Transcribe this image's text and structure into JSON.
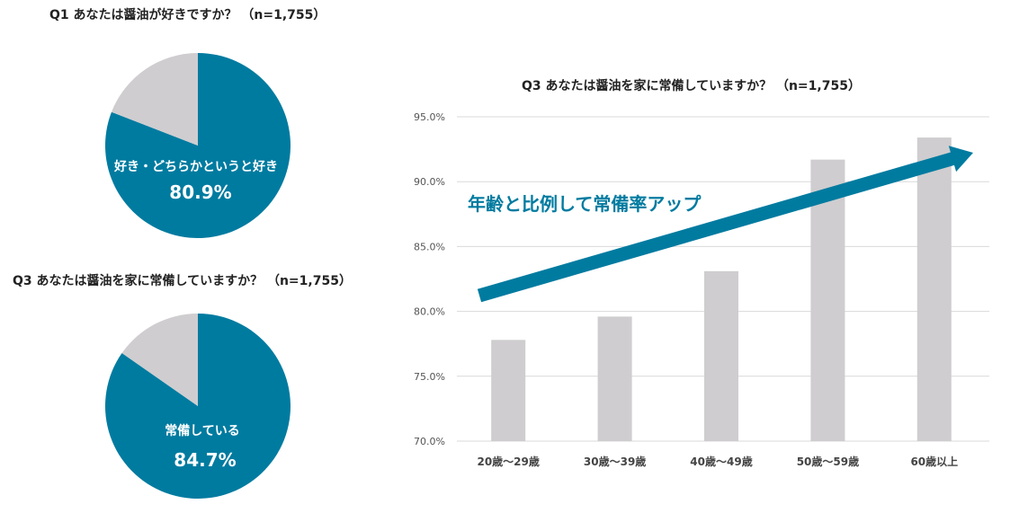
{
  "colors": {
    "accent": "#007ba0",
    "remainder": "#cfcdcf",
    "bar": "#cfcdcf",
    "grid": "#d9d9d9"
  },
  "chart_data": [
    {
      "type": "pie",
      "title": "Q1 あなたは醤油が好きですか？ （n=1,755）",
      "slices": [
        {
          "label": "好き・どちらかというと好き",
          "value": 80.9,
          "display": "80.9%"
        },
        {
          "label": "",
          "value": 19.1
        }
      ]
    },
    {
      "type": "pie",
      "title": "Q3 あなたは醤油を家に常備していますか？ （n=1,755）",
      "slices": [
        {
          "label": "常備している",
          "value": 84.7,
          "display": "84.7%"
        },
        {
          "label": "",
          "value": 15.3
        }
      ]
    },
    {
      "type": "bar",
      "title": "Q3 あなたは醤油を家に常備していますか？ （n=1,755）",
      "categories": [
        "20歳～29歳",
        "30歳～39歳",
        "40歳～49歳",
        "50歳～59歳",
        "60歳以上"
      ],
      "values": [
        77.8,
        79.6,
        83.1,
        91.7,
        93.4
      ],
      "ylim": [
        70,
        95
      ],
      "yticks": [
        "95.0%",
        "90.0%",
        "85.0%",
        "80.0%",
        "75.0%",
        "70.0%"
      ],
      "ytick_values": [
        95,
        90,
        85,
        80,
        75,
        70
      ],
      "grid": true,
      "annotation": "年齢と比例して常備率アップ"
    }
  ]
}
